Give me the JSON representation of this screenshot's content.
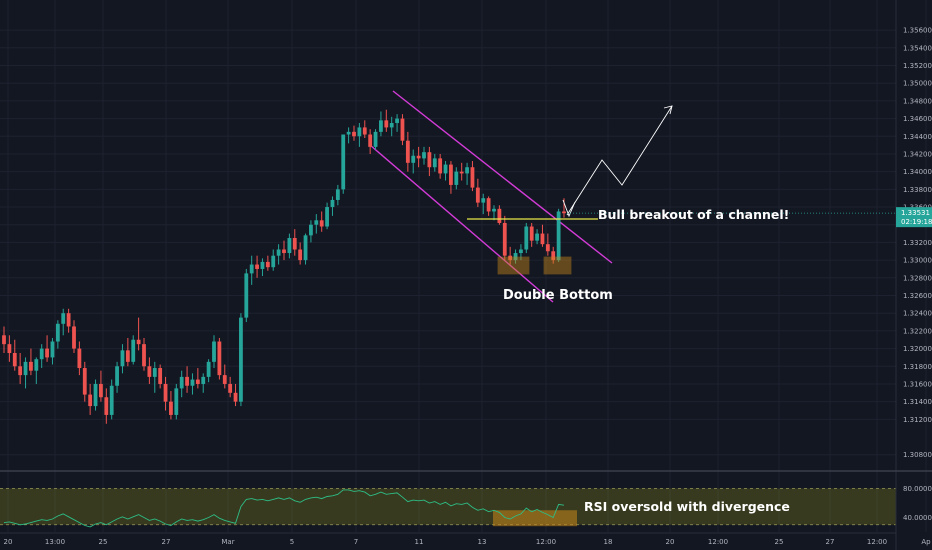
{
  "chart_data": {
    "type": "candlestick",
    "instrument_price": "1.33531",
    "countdown": "02:19:18",
    "y_axis": {
      "range": [
        1.3065,
        1.3585
      ],
      "ticks": [
        "1.35600",
        "1.35400",
        "1.35200",
        "1.35000",
        "1.34800",
        "1.34600",
        "1.34400",
        "1.34200",
        "1.34000",
        "1.33800",
        "1.33600",
        "1.33400",
        "1.33200",
        "1.33000",
        "1.32800",
        "1.32600",
        "1.32400",
        "1.32200",
        "1.32000",
        "1.31800",
        "1.31600",
        "1.31400",
        "1.31200",
        "1.30800"
      ]
    },
    "rsi_axis": {
      "range": [
        20,
        100
      ],
      "ticks": [
        "80.0000",
        "40.0000"
      ],
      "upper_band": 80,
      "lower_band": 30
    },
    "x_axis": {
      "ticks": [
        "20",
        "13:00",
        "25",
        "27",
        "Mar",
        "5",
        "7",
        "11",
        "13",
        "12:00",
        "18",
        "20",
        "12:00",
        "25",
        "27",
        "12:00",
        "Ap"
      ]
    },
    "candles": [
      {
        "o": 1.3215,
        "h": 1.3225,
        "l": 1.3195,
        "c": 1.3205
      },
      {
        "o": 1.3205,
        "h": 1.3215,
        "l": 1.3185,
        "c": 1.3195
      },
      {
        "o": 1.3195,
        "h": 1.321,
        "l": 1.3175,
        "c": 1.318
      },
      {
        "o": 1.318,
        "h": 1.3195,
        "l": 1.316,
        "c": 1.317
      },
      {
        "o": 1.317,
        "h": 1.319,
        "l": 1.3155,
        "c": 1.3185
      },
      {
        "o": 1.3185,
        "h": 1.32,
        "l": 1.317,
        "c": 1.3175
      },
      {
        "o": 1.3175,
        "h": 1.319,
        "l": 1.316,
        "c": 1.3188
      },
      {
        "o": 1.3188,
        "h": 1.3205,
        "l": 1.3178,
        "c": 1.32
      },
      {
        "o": 1.32,
        "h": 1.3215,
        "l": 1.3185,
        "c": 1.319
      },
      {
        "o": 1.319,
        "h": 1.3212,
        "l": 1.3182,
        "c": 1.3208
      },
      {
        "o": 1.3208,
        "h": 1.3232,
        "l": 1.32,
        "c": 1.3228
      },
      {
        "o": 1.3228,
        "h": 1.3245,
        "l": 1.3215,
        "c": 1.324
      },
      {
        "o": 1.324,
        "h": 1.3245,
        "l": 1.3218,
        "c": 1.3225
      },
      {
        "o": 1.3225,
        "h": 1.3232,
        "l": 1.3195,
        "c": 1.32
      },
      {
        "o": 1.32,
        "h": 1.3208,
        "l": 1.317,
        "c": 1.3178
      },
      {
        "o": 1.3178,
        "h": 1.3185,
        "l": 1.314,
        "c": 1.3148
      },
      {
        "o": 1.3148,
        "h": 1.316,
        "l": 1.3125,
        "c": 1.3135
      },
      {
        "o": 1.3135,
        "h": 1.3165,
        "l": 1.313,
        "c": 1.316
      },
      {
        "o": 1.316,
        "h": 1.3175,
        "l": 1.314,
        "c": 1.3145
      },
      {
        "o": 1.3145,
        "h": 1.3155,
        "l": 1.3115,
        "c": 1.3125
      },
      {
        "o": 1.3125,
        "h": 1.3165,
        "l": 1.312,
        "c": 1.3158
      },
      {
        "o": 1.3158,
        "h": 1.3185,
        "l": 1.315,
        "c": 1.318
      },
      {
        "o": 1.318,
        "h": 1.3205,
        "l": 1.3172,
        "c": 1.3198
      },
      {
        "o": 1.3198,
        "h": 1.3212,
        "l": 1.318,
        "c": 1.3185
      },
      {
        "o": 1.3185,
        "h": 1.3215,
        "l": 1.3182,
        "c": 1.321
      },
      {
        "o": 1.321,
        "h": 1.3235,
        "l": 1.3198,
        "c": 1.3205
      },
      {
        "o": 1.3205,
        "h": 1.3212,
        "l": 1.3175,
        "c": 1.318
      },
      {
        "o": 1.318,
        "h": 1.319,
        "l": 1.316,
        "c": 1.3168
      },
      {
        "o": 1.3168,
        "h": 1.3185,
        "l": 1.315,
        "c": 1.3178
      },
      {
        "o": 1.3178,
        "h": 1.3182,
        "l": 1.3155,
        "c": 1.316
      },
      {
        "o": 1.316,
        "h": 1.3168,
        "l": 1.313,
        "c": 1.314
      },
      {
        "o": 1.314,
        "h": 1.3152,
        "l": 1.312,
        "c": 1.3125
      },
      {
        "o": 1.3125,
        "h": 1.316,
        "l": 1.312,
        "c": 1.3155
      },
      {
        "o": 1.3155,
        "h": 1.3175,
        "l": 1.3145,
        "c": 1.3168
      },
      {
        "o": 1.3168,
        "h": 1.318,
        "l": 1.315,
        "c": 1.3158
      },
      {
        "o": 1.3158,
        "h": 1.3172,
        "l": 1.3148,
        "c": 1.3165
      },
      {
        "o": 1.3165,
        "h": 1.3178,
        "l": 1.3155,
        "c": 1.316
      },
      {
        "o": 1.316,
        "h": 1.3172,
        "l": 1.315,
        "c": 1.3168
      },
      {
        "o": 1.3168,
        "h": 1.3188,
        "l": 1.3162,
        "c": 1.3185
      },
      {
        "o": 1.3185,
        "h": 1.3215,
        "l": 1.3178,
        "c": 1.3208
      },
      {
        "o": 1.3208,
        "h": 1.3212,
        "l": 1.3165,
        "c": 1.317
      },
      {
        "o": 1.317,
        "h": 1.3182,
        "l": 1.3155,
        "c": 1.316
      },
      {
        "o": 1.316,
        "h": 1.3168,
        "l": 1.3145,
        "c": 1.315
      },
      {
        "o": 1.315,
        "h": 1.316,
        "l": 1.3135,
        "c": 1.314
      },
      {
        "o": 1.314,
        "h": 1.324,
        "l": 1.3135,
        "c": 1.3235
      },
      {
        "o": 1.3235,
        "h": 1.329,
        "l": 1.323,
        "c": 1.3285
      },
      {
        "o": 1.3285,
        "h": 1.3305,
        "l": 1.3272,
        "c": 1.3295
      },
      {
        "o": 1.3295,
        "h": 1.3305,
        "l": 1.328,
        "c": 1.329
      },
      {
        "o": 1.329,
        "h": 1.3302,
        "l": 1.3282,
        "c": 1.3298
      },
      {
        "o": 1.3298,
        "h": 1.3305,
        "l": 1.3288,
        "c": 1.3292
      },
      {
        "o": 1.3292,
        "h": 1.3312,
        "l": 1.3288,
        "c": 1.3305
      },
      {
        "o": 1.3305,
        "h": 1.3318,
        "l": 1.3295,
        "c": 1.3312
      },
      {
        "o": 1.3312,
        "h": 1.3322,
        "l": 1.33,
        "c": 1.3308
      },
      {
        "o": 1.3308,
        "h": 1.333,
        "l": 1.3302,
        "c": 1.3325
      },
      {
        "o": 1.3325,
        "h": 1.3335,
        "l": 1.3305,
        "c": 1.3312
      },
      {
        "o": 1.3312,
        "h": 1.332,
        "l": 1.3295,
        "c": 1.33
      },
      {
        "o": 1.33,
        "h": 1.333,
        "l": 1.3295,
        "c": 1.3328
      },
      {
        "o": 1.3328,
        "h": 1.3345,
        "l": 1.332,
        "c": 1.334
      },
      {
        "o": 1.334,
        "h": 1.3352,
        "l": 1.333,
        "c": 1.3345
      },
      {
        "o": 1.3345,
        "h": 1.3355,
        "l": 1.3332,
        "c": 1.3338
      },
      {
        "o": 1.3338,
        "h": 1.3365,
        "l": 1.3335,
        "c": 1.336
      },
      {
        "o": 1.336,
        "h": 1.3372,
        "l": 1.335,
        "c": 1.3368
      },
      {
        "o": 1.3368,
        "h": 1.3385,
        "l": 1.3362,
        "c": 1.338
      },
      {
        "o": 1.338,
        "h": 1.344,
        "l": 1.3375,
        "c": 1.3442
      },
      {
        "o": 1.3442,
        "h": 1.345,
        "l": 1.3432,
        "c": 1.3445
      },
      {
        "o": 1.3445,
        "h": 1.3452,
        "l": 1.3435,
        "c": 1.344
      },
      {
        "o": 1.344,
        "h": 1.3455,
        "l": 1.3428,
        "c": 1.345
      },
      {
        "o": 1.345,
        "h": 1.3458,
        "l": 1.3438,
        "c": 1.3442
      },
      {
        "o": 1.3442,
        "h": 1.3448,
        "l": 1.342,
        "c": 1.3428
      },
      {
        "o": 1.3428,
        "h": 1.3448,
        "l": 1.3425,
        "c": 1.3445
      },
      {
        "o": 1.3445,
        "h": 1.3468,
        "l": 1.344,
        "c": 1.3458
      },
      {
        "o": 1.3458,
        "h": 1.347,
        "l": 1.3445,
        "c": 1.345
      },
      {
        "o": 1.345,
        "h": 1.3462,
        "l": 1.344,
        "c": 1.3455
      },
      {
        "o": 1.3455,
        "h": 1.3465,
        "l": 1.3445,
        "c": 1.346
      },
      {
        "o": 1.346,
        "h": 1.3465,
        "l": 1.343,
        "c": 1.3435
      },
      {
        "o": 1.3435,
        "h": 1.3445,
        "l": 1.34,
        "c": 1.341
      },
      {
        "o": 1.341,
        "h": 1.3425,
        "l": 1.3398,
        "c": 1.3418
      },
      {
        "o": 1.3418,
        "h": 1.3428,
        "l": 1.3405,
        "c": 1.3415
      },
      {
        "o": 1.3415,
        "h": 1.3428,
        "l": 1.3408,
        "c": 1.3422
      },
      {
        "o": 1.3422,
        "h": 1.3428,
        "l": 1.3395,
        "c": 1.3405
      },
      {
        "o": 1.3405,
        "h": 1.342,
        "l": 1.34,
        "c": 1.3415
      },
      {
        "o": 1.3415,
        "h": 1.342,
        "l": 1.3392,
        "c": 1.3398
      },
      {
        "o": 1.3398,
        "h": 1.3412,
        "l": 1.339,
        "c": 1.3408
      },
      {
        "o": 1.3408,
        "h": 1.3412,
        "l": 1.3375,
        "c": 1.3385
      },
      {
        "o": 1.3385,
        "h": 1.3405,
        "l": 1.338,
        "c": 1.34
      },
      {
        "o": 1.34,
        "h": 1.341,
        "l": 1.339,
        "c": 1.3398
      },
      {
        "o": 1.3398,
        "h": 1.341,
        "l": 1.3385,
        "c": 1.3405
      },
      {
        "o": 1.3405,
        "h": 1.3412,
        "l": 1.3378,
        "c": 1.3382
      },
      {
        "o": 1.3382,
        "h": 1.3392,
        "l": 1.336,
        "c": 1.3365
      },
      {
        "o": 1.3365,
        "h": 1.3375,
        "l": 1.3352,
        "c": 1.337
      },
      {
        "o": 1.337,
        "h": 1.3372,
        "l": 1.335,
        "c": 1.3355
      },
      {
        "o": 1.3355,
        "h": 1.3362,
        "l": 1.3345,
        "c": 1.3358
      },
      {
        "o": 1.3358,
        "h": 1.3362,
        "l": 1.334,
        "c": 1.3342
      },
      {
        "o": 1.3342,
        "h": 1.335,
        "l": 1.33,
        "c": 1.3305
      },
      {
        "o": 1.3305,
        "h": 1.3315,
        "l": 1.3295,
        "c": 1.33
      },
      {
        "o": 1.33,
        "h": 1.3312,
        "l": 1.3296,
        "c": 1.3308
      },
      {
        "o": 1.3308,
        "h": 1.3318,
        "l": 1.33,
        "c": 1.3312
      },
      {
        "o": 1.3312,
        "h": 1.3342,
        "l": 1.3308,
        "c": 1.3338
      },
      {
        "o": 1.3338,
        "h": 1.3342,
        "l": 1.3315,
        "c": 1.3322
      },
      {
        "o": 1.3322,
        "h": 1.3335,
        "l": 1.3318,
        "c": 1.333
      },
      {
        "o": 1.333,
        "h": 1.334,
        "l": 1.3315,
        "c": 1.3318
      },
      {
        "o": 1.3318,
        "h": 1.333,
        "l": 1.3305,
        "c": 1.331
      },
      {
        "o": 1.331,
        "h": 1.3315,
        "l": 1.3296,
        "c": 1.33
      },
      {
        "o": 1.33,
        "h": 1.3358,
        "l": 1.3298,
        "c": 1.3355
      },
      {
        "o": 1.3355,
        "h": 1.337,
        "l": 1.3348,
        "c": 1.3353
      }
    ],
    "rsi": [
      33,
      34,
      32,
      30,
      31,
      33,
      35,
      37,
      36,
      38,
      42,
      45,
      41,
      37,
      33,
      29,
      27,
      31,
      33,
      30,
      34,
      38,
      41,
      38,
      41,
      44,
      40,
      36,
      38,
      35,
      31,
      29,
      34,
      38,
      36,
      37,
      35,
      37,
      40,
      44,
      39,
      36,
      34,
      32,
      55,
      65,
      66,
      64,
      65,
      63,
      65,
      67,
      65,
      67,
      63,
      61,
      65,
      67,
      68,
      66,
      69,
      70,
      72,
      78,
      78,
      76,
      77,
      75,
      70,
      72,
      75,
      72,
      73,
      74,
      68,
      62,
      64,
      63,
      64,
      60,
      62,
      58,
      61,
      56,
      59,
      58,
      60,
      54,
      50,
      52,
      48,
      50,
      47,
      40,
      38,
      42,
      45,
      53,
      48,
      51,
      47,
      44,
      40,
      58,
      57
    ],
    "annotations": {
      "breakout": "Bull breakout of a channel!",
      "double_bottom": "Double Bottom",
      "rsi_note": "RSI oversold with divergence"
    }
  }
}
